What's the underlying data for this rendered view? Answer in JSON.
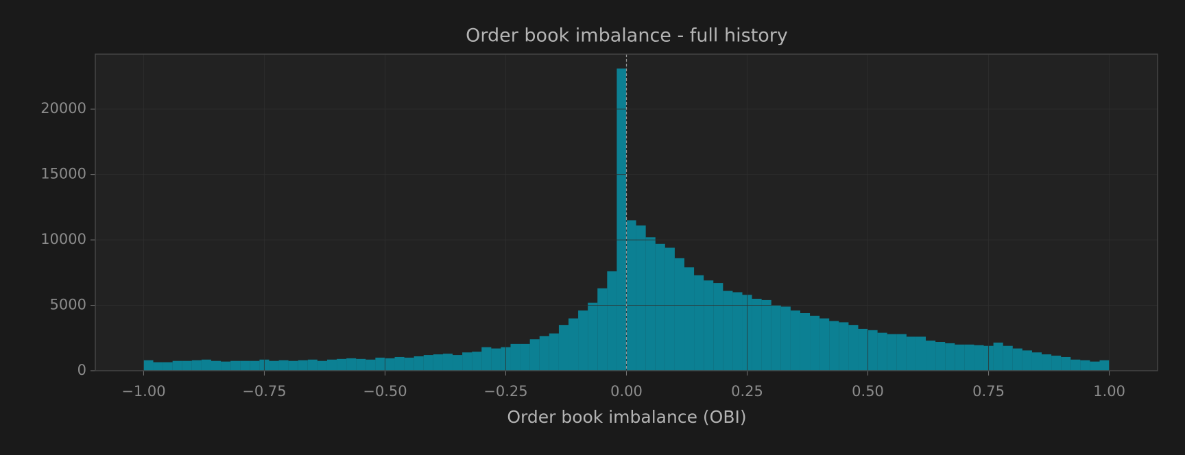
{
  "chart_data": {
    "type": "histogram",
    "title": "Order book imbalance - full history",
    "x_label": "Order book imbalance (OBI)",
    "bins": [
      -1.0,
      -0.98,
      -0.96,
      -0.94,
      -0.92,
      -0.9,
      -0.88,
      -0.86,
      -0.84,
      -0.82,
      -0.8,
      -0.78,
      -0.76,
      -0.74,
      -0.72,
      -0.7,
      -0.68,
      -0.66,
      -0.64,
      -0.62,
      -0.6,
      -0.58,
      -0.56,
      -0.54,
      -0.52,
      -0.5,
      -0.48,
      -0.46,
      -0.44,
      -0.42,
      -0.4,
      -0.38,
      -0.36,
      -0.34,
      -0.32,
      -0.3,
      -0.28,
      -0.26,
      -0.24,
      -0.22,
      -0.2,
      -0.18,
      -0.16,
      -0.14,
      -0.12,
      -0.1,
      -0.08,
      -0.06,
      -0.04,
      -0.02,
      0.0,
      0.02,
      0.04,
      0.06,
      0.08,
      0.1,
      0.12,
      0.14,
      0.16,
      0.18,
      0.2,
      0.22,
      0.24,
      0.26,
      0.28,
      0.3,
      0.32,
      0.34,
      0.36,
      0.38,
      0.4,
      0.42,
      0.44,
      0.46,
      0.48,
      0.5,
      0.52,
      0.54,
      0.56,
      0.58,
      0.6,
      0.62,
      0.64,
      0.66,
      0.68,
      0.7,
      0.72,
      0.74,
      0.76,
      0.78,
      0.8,
      0.82,
      0.84,
      0.86,
      0.88,
      0.9,
      0.92,
      0.94,
      0.96,
      0.98,
      1.0
    ],
    "values": [
      800,
      650,
      650,
      750,
      750,
      800,
      850,
      750,
      700,
      750,
      750,
      750,
      850,
      750,
      800,
      750,
      800,
      850,
      750,
      850,
      900,
      950,
      900,
      850,
      1000,
      950,
      1050,
      1000,
      1100,
      1200,
      1250,
      1300,
      1200,
      1400,
      1450,
      1800,
      1700,
      1800,
      2050,
      2050,
      2400,
      2650,
      2850,
      3500,
      4000,
      4600,
      5200,
      6300,
      7600,
      23100,
      11500,
      11100,
      10200,
      9700,
      9400,
      8600,
      7900,
      7300,
      6900,
      6700,
      6100,
      6000,
      5800,
      5500,
      5400,
      5000,
      4900,
      4600,
      4400,
      4200,
      4000,
      3800,
      3700,
      3500,
      3200,
      3100,
      2900,
      2800,
      2800,
      2600,
      2600,
      2300,
      2200,
      2100,
      2000,
      2000,
      1950,
      1900,
      2150,
      1900,
      1700,
      1550,
      1400,
      1250,
      1150,
      1050,
      850,
      800,
      700,
      800
    ],
    "color": "#0a8ba0",
    "xlim": [
      -1.1,
      1.1
    ],
    "xticks": [
      {
        "value": -1,
        "label": "−1.00"
      },
      {
        "value": -0.75,
        "label": "−0.75"
      },
      {
        "value": -0.5,
        "label": "−0.50"
      },
      {
        "value": -0.25,
        "label": "−0.25"
      },
      {
        "value": 0,
        "label": "0.00"
      },
      {
        "value": 0.25,
        "label": "0.25"
      },
      {
        "value": 0.5,
        "label": "0.50"
      },
      {
        "value": 0.75,
        "label": "0.75"
      },
      {
        "value": 1,
        "label": "1.00"
      }
    ],
    "ylim": [
      0,
      24200
    ],
    "yticks": [
      0,
      5000,
      10000,
      15000,
      20000
    ],
    "grid": true,
    "reference_line": {
      "x": 0
    }
  }
}
